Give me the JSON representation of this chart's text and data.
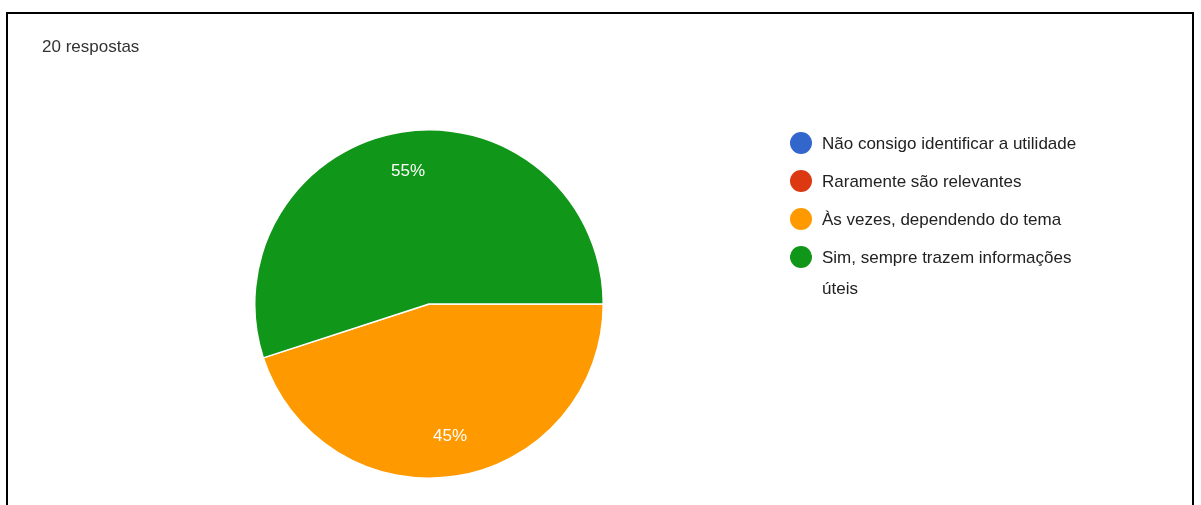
{
  "chart_data": {
    "type": "pie",
    "title": "20 respostas",
    "categories": [
      "Não consigo identificar a utilidade",
      "Raramente são relevantes",
      "Às vezes, dependendo do tema",
      "Sim, sempre trazem informações úteis"
    ],
    "values": [
      0,
      0,
      45,
      55
    ],
    "colors": [
      "#3366cc",
      "#dc3912",
      "#ff9900",
      "#109618"
    ],
    "value_labels": [
      null,
      null,
      "45%",
      "55%"
    ],
    "legend": "right"
  }
}
